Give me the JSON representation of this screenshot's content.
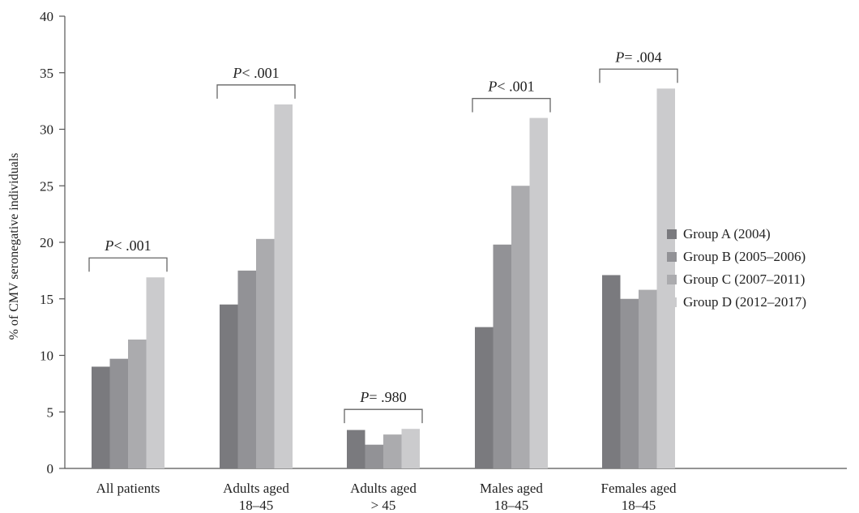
{
  "chart_data": {
    "type": "bar",
    "title": "",
    "xlabel": "",
    "ylabel": "% of CMV seronegative individuals",
    "ylim": [
      0,
      40
    ],
    "yticks": [
      0,
      5,
      10,
      15,
      20,
      25,
      30,
      35,
      40
    ],
    "grid": false,
    "legend_position": "right",
    "categories": [
      [
        "All patients"
      ],
      [
        "Adults aged",
        "18–45"
      ],
      [
        "Adults aged",
        "> 45"
      ],
      [
        "Males aged",
        "18–45"
      ],
      [
        "Females aged",
        "18–45"
      ]
    ],
    "series": [
      {
        "name": "Group A (2004)",
        "color": "#7a7a7e",
        "values": [
          9.0,
          14.5,
          3.4,
          12.5,
          17.1
        ]
      },
      {
        "name": "Group B (2005–2006)",
        "color": "#929296",
        "values": [
          9.7,
          17.5,
          2.1,
          19.8,
          15.0
        ]
      },
      {
        "name": "Group C (2007–2011)",
        "color": "#ababae",
        "values": [
          11.4,
          20.3,
          3.0,
          25.0,
          15.8
        ]
      },
      {
        "name": "Group D (2012–2017)",
        "color": "#cbcbcd",
        "values": [
          16.9,
          32.2,
          3.5,
          31.0,
          33.6
        ]
      }
    ],
    "annotations": [
      {
        "category_index": 0,
        "symbol": "P",
        "text": "< .001"
      },
      {
        "category_index": 1,
        "symbol": "P",
        "text": "< .001"
      },
      {
        "category_index": 2,
        "symbol": "P",
        "text": "= .980"
      },
      {
        "category_index": 3,
        "symbol": "P",
        "text": "< .001"
      },
      {
        "category_index": 4,
        "symbol": "P",
        "text": "= .004"
      }
    ]
  }
}
